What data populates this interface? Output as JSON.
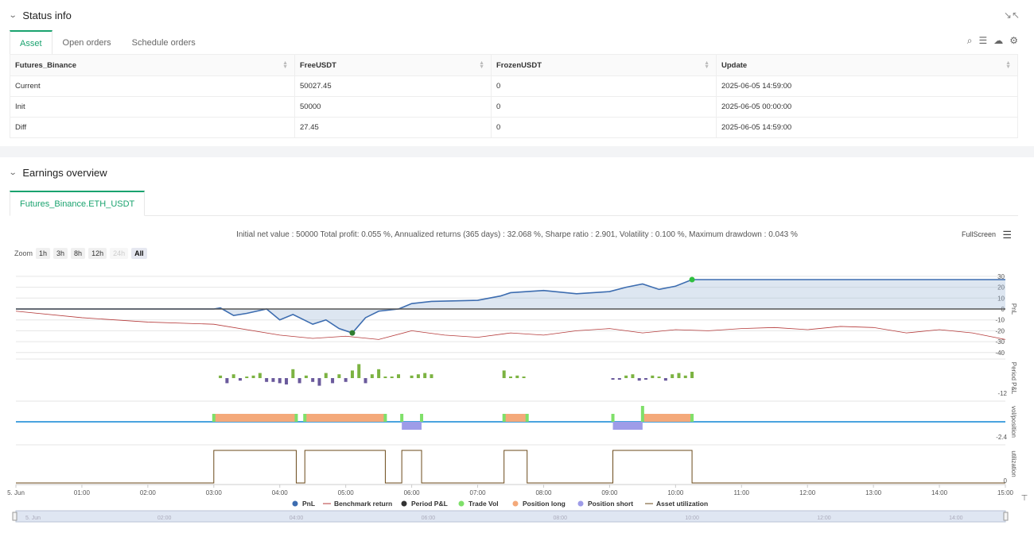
{
  "status": {
    "title": "Status info",
    "tabs": [
      "Asset",
      "Open orders",
      "Schedule orders"
    ],
    "columns": [
      "Futures_Binance",
      "FreeUSDT",
      "FrozenUSDT",
      "Update"
    ],
    "rows": [
      {
        "name": "Current",
        "free": "50027.45",
        "frozen": "0",
        "update": "2025-06-05 14:59:00"
      },
      {
        "name": "Init",
        "free": "50000",
        "frozen": "0",
        "update": "2025-06-05 00:00:00"
      },
      {
        "name": "Diff",
        "free": "27.45",
        "frozen": "0",
        "update": "2025-06-05 14:59:00"
      }
    ]
  },
  "earnings": {
    "title": "Earnings overview",
    "tab": "Futures_Binance.ETH_USDT",
    "summary": "Initial net value : 50000 Total profit: 0.055 %, Annualized returns (365 days) : 32.068 %, Sharpe ratio : 2.901, Volatility : 0.100 %, Maximum drawdown : 0.043 %",
    "fullscreen": "FullScreen",
    "zoom_label": "Zoom",
    "zoom_buttons": [
      "1h",
      "3h",
      "8h",
      "12h",
      "24h",
      "All"
    ]
  },
  "colors": {
    "pnl": "#3d6db0",
    "benchmark": "#b53a3a",
    "period": "#333333",
    "trade_vol": "#7fe06a",
    "pos_long": "#f4a97a",
    "pos_short": "#9e9ce8",
    "util": "#6b4a1a",
    "accent": "#1aa36f"
  },
  "chart_data": {
    "type": "line",
    "x_ticks": [
      "5. Jun",
      "01:00",
      "02:00",
      "03:00",
      "04:00",
      "05:00",
      "06:00",
      "07:00",
      "08:00",
      "09:00",
      "10:00",
      "11:00",
      "12:00",
      "13:00",
      "14:00",
      "15:00"
    ],
    "navigator_ticks": [
      "5. Jun",
      "02:00",
      "04:00",
      "06:00",
      "08:00",
      "10:00",
      "12:00",
      "14:00"
    ],
    "panes": [
      {
        "axis_title": "PnL",
        "yticks": [
          30,
          20,
          10,
          0,
          -10,
          -20,
          -30,
          -40
        ],
        "ylim": [
          -40,
          30
        ]
      },
      {
        "axis_title": "Period P&L",
        "yticks": [
          -12
        ]
      },
      {
        "axis_title": "vol/position",
        "yticks": [
          -2.4
        ]
      },
      {
        "axis_title": "utilization",
        "yticks": [
          0
        ]
      }
    ],
    "series": [
      {
        "name": "PnL",
        "x": [
          0,
          3,
          3.1,
          3.3,
          3.5,
          3.8,
          4.0,
          4.2,
          4.5,
          4.7,
          4.9,
          5.1,
          5.3,
          5.5,
          5.8,
          6.0,
          6.3,
          7.0,
          7.35,
          7.5,
          8.0,
          8.5,
          9.0,
          9.25,
          9.5,
          9.75,
          10.0,
          10.25,
          15.0
        ],
        "y": [
          0,
          0,
          1,
          -6,
          -4,
          0,
          -10,
          -5,
          -14,
          -10,
          -18,
          -22,
          -8,
          -2,
          0,
          5,
          7,
          8,
          12,
          15,
          17,
          14,
          16,
          20,
          23,
          18,
          21,
          27,
          27
        ]
      },
      {
        "name": "Benchmark return",
        "x": [
          0,
          1,
          2,
          3,
          4,
          4.5,
          5,
          5.5,
          6,
          6.5,
          7,
          7.5,
          8,
          8.5,
          9,
          9.5,
          10,
          10.5,
          11,
          11.5,
          12,
          12.5,
          13,
          13.5,
          14,
          14.5,
          15
        ],
        "y": [
          -2,
          -8,
          -12,
          -14,
          -24,
          -27,
          -25,
          -28,
          -20,
          -24,
          -26,
          -22,
          -24,
          -20,
          -18,
          -22,
          -19,
          -20,
          -18,
          -17,
          -19,
          -16,
          -17,
          -22,
          -19,
          -22,
          -28
        ]
      },
      {
        "name": "Period P&L",
        "x": [
          3.1,
          3.2,
          3.3,
          3.4,
          3.5,
          3.6,
          3.7,
          3.8,
          3.9,
          4.0,
          4.1,
          4.2,
          4.3,
          4.4,
          4.5,
          4.6,
          4.7,
          4.8,
          4.9,
          5.0,
          5.1,
          5.2,
          5.3,
          5.4,
          5.5,
          5.6,
          5.7,
          5.8,
          6.0,
          6.1,
          6.2,
          6.3,
          7.4,
          7.5,
          7.6,
          7.7,
          9.05,
          9.15,
          9.25,
          9.35,
          9.45,
          9.55,
          9.65,
          9.75,
          9.85,
          9.95,
          10.05,
          10.15,
          10.25
        ],
        "y": [
          2,
          -4,
          3,
          -2,
          1,
          2,
          4,
          -3,
          -3,
          -4,
          -5,
          7,
          -4,
          2,
          -3,
          -6,
          4,
          -4,
          3,
          -3,
          6,
          11,
          -4,
          3,
          7,
          1,
          1,
          3,
          2,
          3,
          4,
          3,
          6,
          1,
          2,
          1,
          -1,
          -1,
          2,
          3,
          -2,
          -1,
          2,
          1,
          -2,
          3,
          4,
          2,
          5
        ]
      },
      {
        "name": "Trade Vol",
        "x": [
          3.0,
          4.25,
          4.38,
          5.6,
          5.85,
          6.15,
          7.4,
          7.75,
          9.05,
          9.5,
          10.25
        ],
        "y": [
          1,
          1,
          1,
          1,
          1,
          1,
          1,
          1,
          1,
          2,
          1
        ]
      },
      {
        "name": "Position long",
        "intervals": [
          [
            3.0,
            4.25
          ],
          [
            4.38,
            5.6
          ],
          [
            7.4,
            7.75
          ],
          [
            9.5,
            10.25
          ]
        ],
        "y": 1
      },
      {
        "name": "Position short",
        "intervals": [
          [
            5.85,
            6.15
          ],
          [
            9.05,
            9.5
          ]
        ],
        "y": -1
      },
      {
        "name": "Asset utilization",
        "intervals": [
          [
            3.0,
            4.25
          ],
          [
            4.38,
            5.6
          ],
          [
            5.85,
            6.15
          ],
          [
            7.4,
            7.75
          ],
          [
            9.05,
            10.25
          ]
        ],
        "y": 1
      }
    ]
  }
}
